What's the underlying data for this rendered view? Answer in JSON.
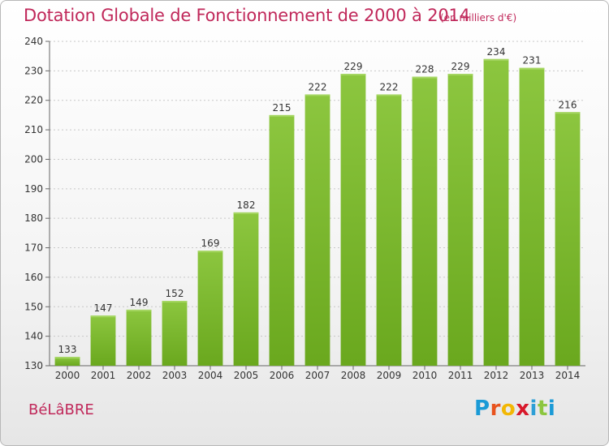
{
  "title": "Dotation Globale de Fonctionnement de 2000 à 2014",
  "unit_note": "(en milliers d'€)",
  "commune": "BéLâBRE",
  "brand": {
    "letters": [
      "P",
      "r",
      "o",
      "x",
      "i",
      "t",
      "i"
    ],
    "colors": [
      "#1a9ad6",
      "#e8531e",
      "#f2b705",
      "#d8182b",
      "#2e9fd6",
      "#8cc63f",
      "#1a9ad6"
    ]
  },
  "chart_data": {
    "type": "bar",
    "title": "Dotation Globale de Fonctionnement de 2000 à 2014",
    "categories": [
      "2000",
      "2001",
      "2002",
      "2003",
      "2004",
      "2005",
      "2006",
      "2007",
      "2008",
      "2009",
      "2010",
      "2011",
      "2012",
      "2013",
      "2014"
    ],
    "values": [
      133,
      147,
      149,
      152,
      169,
      182,
      215,
      222,
      229,
      222,
      228,
      229,
      234,
      231,
      216
    ],
    "ylim": [
      130,
      240
    ],
    "yticks": [
      130,
      140,
      150,
      160,
      170,
      180,
      190,
      200,
      210,
      220,
      230,
      240
    ],
    "grid": true,
    "bar_color": "#8cc63f",
    "bar_color_dark": "#6aa81e"
  }
}
